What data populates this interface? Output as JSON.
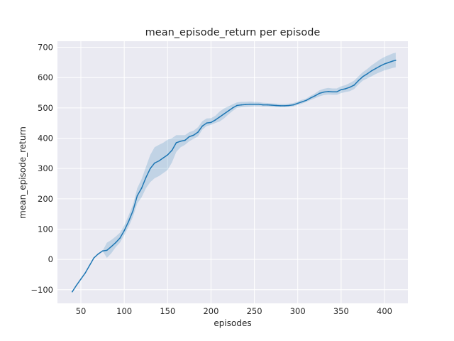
{
  "chart_data": {
    "type": "line",
    "title": "mean_episode_return per episode",
    "xlabel": "episodes",
    "ylabel": "mean_episode_return",
    "xlim": [
      23,
      427
    ],
    "ylim": [
      -145,
      720
    ],
    "xticks": [
      50,
      100,
      150,
      200,
      250,
      300,
      350,
      400
    ],
    "yticks": [
      -100,
      0,
      100,
      200,
      300,
      400,
      500,
      600,
      700
    ],
    "grid": true,
    "legend": "none",
    "colors": {
      "background": "#eaeaf2",
      "grid": "#ffffff",
      "line": "#1f77b4",
      "band": "#1f77b4"
    },
    "series": [
      {
        "x": [
          40,
          45,
          50,
          55,
          60,
          65,
          70,
          75,
          80,
          85,
          90,
          95,
          100,
          105,
          110,
          115,
          120,
          125,
          130,
          135,
          140,
          145,
          150,
          155,
          160,
          165,
          170,
          175,
          180,
          185,
          190,
          195,
          200,
          205,
          210,
          215,
          220,
          225,
          230,
          235,
          240,
          245,
          250,
          255,
          260,
          265,
          270,
          275,
          280,
          285,
          290,
          295,
          300,
          305,
          310,
          315,
          320,
          325,
          330,
          335,
          340,
          345,
          350,
          355,
          360,
          365,
          370,
          375,
          380,
          385,
          390,
          395,
          400,
          405,
          410,
          413
        ],
        "y": [
          -107,
          -85,
          -65,
          -45,
          -20,
          5,
          18,
          28,
          30,
          42,
          55,
          70,
          95,
          125,
          160,
          210,
          235,
          270,
          300,
          318,
          325,
          335,
          345,
          360,
          385,
          390,
          393,
          405,
          410,
          420,
          440,
          450,
          452,
          460,
          470,
          480,
          490,
          500,
          508,
          510,
          511,
          512,
          512,
          512,
          510,
          510,
          509,
          508,
          507,
          507,
          508,
          510,
          515,
          520,
          525,
          533,
          540,
          548,
          552,
          554,
          553,
          553,
          560,
          563,
          568,
          575,
          590,
          603,
          612,
          622,
          630,
          638,
          645,
          650,
          655,
          657
        ],
        "lower": [
          -107,
          -85,
          -65,
          -45,
          -20,
          5,
          18,
          28,
          5,
          20,
          40,
          55,
          80,
          108,
          140,
          185,
          205,
          235,
          255,
          268,
          275,
          285,
          295,
          320,
          355,
          370,
          378,
          390,
          398,
          406,
          428,
          440,
          444,
          450,
          455,
          465,
          478,
          490,
          500,
          502,
          503,
          504,
          505,
          505,
          504,
          504,
          503,
          502,
          502,
          502,
          503,
          505,
          510,
          514,
          520,
          526,
          532,
          538,
          542,
          544,
          543,
          543,
          549,
          552,
          555,
          562,
          577,
          590,
          597,
          604,
          612,
          618,
          624,
          628,
          632,
          634
        ],
        "upper": [
          -107,
          -85,
          -65,
          -45,
          -20,
          5,
          18,
          28,
          55,
          64,
          75,
          88,
          112,
          145,
          180,
          235,
          265,
          305,
          345,
          370,
          378,
          385,
          395,
          400,
          410,
          410,
          410,
          420,
          425,
          436,
          456,
          465,
          466,
          474,
          488,
          498,
          505,
          512,
          518,
          520,
          520,
          521,
          520,
          519,
          517,
          516,
          515,
          514,
          513,
          513,
          514,
          516,
          521,
          527,
          531,
          540,
          548,
          558,
          563,
          566,
          564,
          564,
          571,
          575,
          582,
          590,
          604,
          618,
          628,
          640,
          650,
          660,
          668,
          674,
          680,
          682
        ]
      }
    ]
  }
}
